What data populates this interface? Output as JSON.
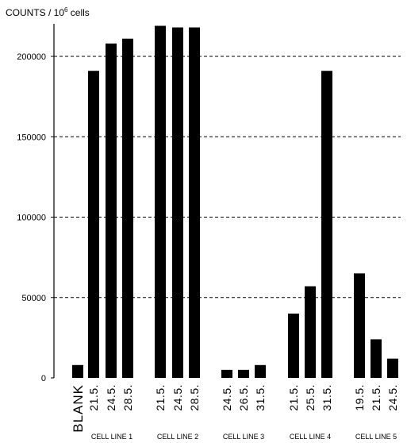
{
  "chart_data": {
    "type": "bar",
    "ylabel": {
      "text": "COUNTS / 10",
      "exponent": "6",
      "suffix": " cells"
    },
    "ylim": [
      0,
      220000
    ],
    "yticks": [
      0,
      50000,
      100000,
      150000,
      200000
    ],
    "ytick_labels": [
      "0",
      "50000",
      "100000",
      "150000",
      "200000"
    ],
    "grid": "horizontal dashed",
    "bar_color": "#000000",
    "bars": [
      {
        "label": "BLANK",
        "group": "",
        "value": 8000
      },
      {
        "label": "21.5.",
        "group": "CELL LINE 1",
        "value": 191000
      },
      {
        "label": "24.5.",
        "group": "CELL LINE 1",
        "value": 208000
      },
      {
        "label": "28.5.",
        "group": "CELL LINE 1",
        "value": 211000
      },
      {
        "label": "21.5.",
        "group": "CELL LINE 2",
        "value": 219000
      },
      {
        "label": "24.5.",
        "group": "CELL LINE 2",
        "value": 218000
      },
      {
        "label": "28.5.",
        "group": "CELL LINE 2",
        "value": 218000
      },
      {
        "label": "24.5.",
        "group": "CELL LINE 3",
        "value": 5000
      },
      {
        "label": "26.5.",
        "group": "CELL LINE 3",
        "value": 5000
      },
      {
        "label": "31.5.",
        "group": "CELL LINE 3",
        "value": 8000
      },
      {
        "label": "21.5.",
        "group": "CELL LINE 4",
        "value": 40000
      },
      {
        "label": "25.5.",
        "group": "CELL LINE 4",
        "value": 57000
      },
      {
        "label": "31.5.",
        "group": "CELL LINE 4",
        "value": 191000
      },
      {
        "label": "19.5.",
        "group": "CELL LINE 5",
        "value": 65000
      },
      {
        "label": "21.5.",
        "group": "CELL LINE 5",
        "value": 24000
      },
      {
        "label": "24.5.",
        "group": "CELL LINE 5",
        "value": 12000
      }
    ],
    "groups": [
      "CELL LINE 1",
      "CELL LINE 2",
      "CELL LINE 3",
      "CELL LINE 4",
      "CELL LINE 5"
    ]
  }
}
